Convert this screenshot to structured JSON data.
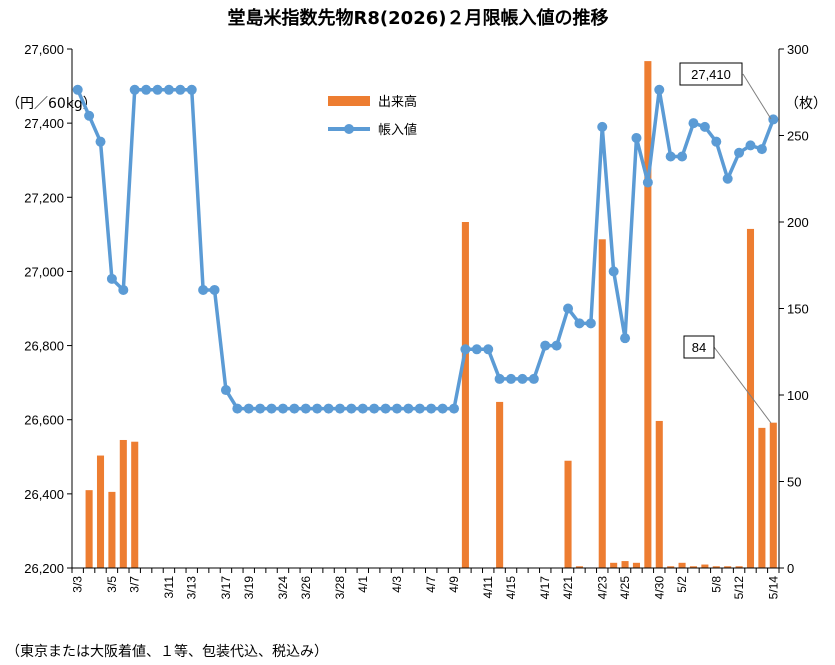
{
  "chart_data": {
    "type": "bar+line",
    "title": "堂島米指数先物R8(2026)２月限帳入値の推移",
    "left_axis_unit": "（円／60kg）",
    "right_axis_unit": "（枚）",
    "left_axis": {
      "min": 26200,
      "max": 27600,
      "ticks": [
        "26,200",
        "26,400",
        "26,600",
        "26,800",
        "27,000",
        "27,200",
        "27,400",
        "27,600"
      ]
    },
    "right_axis": {
      "min": 0,
      "max": 300,
      "ticks": [
        "0",
        "50",
        "100",
        "150",
        "200",
        "250",
        "300"
      ]
    },
    "x_tick_labels": [
      "3/3",
      "3/5",
      "3/7",
      "3/11",
      "3/13",
      "3/17",
      "3/19",
      "3/24",
      "3/26",
      "3/28",
      "4/1",
      "4/3",
      "4/7",
      "4/9",
      "4/11",
      "4/15",
      "4/17",
      "4/21",
      "4/23",
      "4/25",
      "4/30",
      "5/2",
      "5/8",
      "5/12",
      "5/14"
    ],
    "series": [
      {
        "name": "出来高",
        "kind": "bar",
        "axis": "right",
        "color": "#ED7D31",
        "values": [
          0,
          45,
          65,
          44,
          74,
          73,
          0,
          0,
          0,
          0,
          0,
          0,
          0,
          0,
          0,
          0,
          0,
          0,
          0,
          0,
          0,
          0,
          0,
          0,
          0,
          0,
          0,
          0,
          0,
          0,
          0,
          0,
          0,
          0,
          200,
          0,
          0,
          96,
          0,
          0,
          0,
          0,
          0,
          62,
          1,
          0,
          190,
          3,
          4,
          3,
          293,
          85,
          1,
          3,
          1,
          2,
          1,
          1,
          1,
          196,
          81,
          84
        ]
      },
      {
        "name": "帳入値",
        "kind": "line",
        "axis": "left",
        "color": "#5B9BD5",
        "values": [
          27490,
          27420,
          27350,
          26980,
          26950,
          27490,
          27490,
          27490,
          27490,
          27490,
          27490,
          26950,
          26950,
          26680,
          26630,
          26630,
          26630,
          26630,
          26630,
          26630,
          26630,
          26630,
          26630,
          26630,
          26630,
          26630,
          26630,
          26630,
          26630,
          26630,
          26630,
          26630,
          26630,
          26630,
          26790,
          26790,
          26790,
          26710,
          26710,
          26710,
          26710,
          26800,
          26800,
          26900,
          26860,
          26860,
          27390,
          27000,
          26820,
          27360,
          27240,
          27490,
          27310,
          27310,
          27400,
          27390,
          27350,
          27250,
          27320,
          27340,
          27330,
          27410
        ]
      }
    ],
    "legend": {
      "items": [
        "出来高",
        "帳入値"
      ],
      "position": "top-center"
    },
    "annotations": {
      "last_price": "27,410",
      "last_volume": "84"
    },
    "footnote": "（東京または大阪着値、１等、包装代込、税込み）",
    "grid": false
  }
}
